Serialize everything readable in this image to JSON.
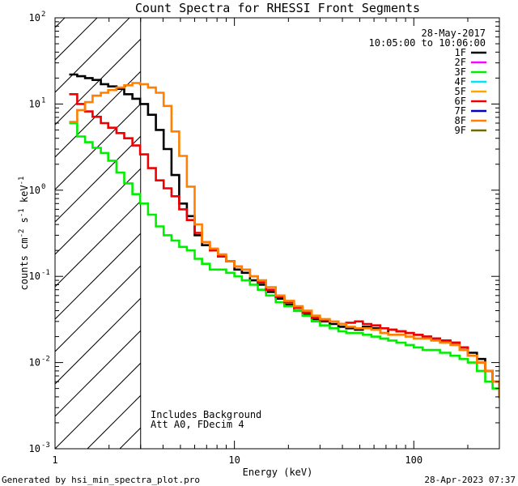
{
  "chart_data": {
    "type": "line",
    "title": "Count Spectra for RHESSI Front Segments",
    "xlabel": "Energy (keV)",
    "ylabel_base": "counts cm",
    "ylabel_exp1": "-2",
    "ylabel_mid": " s",
    "ylabel_exp2": "-1",
    "ylabel_tail": " keV",
    "ylabel_exp3": "-1",
    "xscale": "log",
    "yscale": "log",
    "xlim": [
      1,
      300
    ],
    "ylim": [
      0.001,
      100
    ],
    "x_ticks": [
      {
        "value": 1,
        "base": "1",
        "exp": ""
      },
      {
        "value": 10,
        "base": "10",
        "exp": ""
      },
      {
        "value": 100,
        "base": "100",
        "exp": ""
      }
    ],
    "y_ticks": [
      {
        "value": 100,
        "base": "10",
        "exp": "2"
      },
      {
        "value": 10,
        "base": "10",
        "exp": "1"
      },
      {
        "value": 1,
        "base": "10",
        "exp": "0"
      },
      {
        "value": 0.1,
        "base": "10",
        "exp": "-1"
      },
      {
        "value": 0.01,
        "base": "10",
        "exp": "-2"
      },
      {
        "value": 0.001,
        "base": "10",
        "exp": "-3"
      }
    ],
    "legend_position": "top-right",
    "date": "28-May-2017",
    "time_range": "10:05:00 to 10:06:00",
    "legend": [
      {
        "name": "1F",
        "color": "#000000"
      },
      {
        "name": "2F",
        "color": "#ff00ff"
      },
      {
        "name": "3F",
        "color": "#00ee00"
      },
      {
        "name": "4F",
        "color": "#00e5ee"
      },
      {
        "name": "5F",
        "color": "#ffa500"
      },
      {
        "name": "6F",
        "color": "#ee0000"
      },
      {
        "name": "7F",
        "color": "#0000cd"
      },
      {
        "name": "8F",
        "color": "#ff8000"
      },
      {
        "name": "9F",
        "color": "#6b6b00"
      }
    ],
    "threshold_energy": 3,
    "annotations": [
      "Includes Background",
      "Att A0, FDecim 4"
    ],
    "series": [
      {
        "name": "1F",
        "color": "#000000",
        "x": [
          1.2,
          1.33,
          1.47,
          1.62,
          1.8,
          1.98,
          2.2,
          2.43,
          2.7,
          2.98,
          3.3,
          3.65,
          4.03,
          4.46,
          4.92,
          5.43,
          6.0,
          6.6,
          7.3,
          8.1,
          9.0,
          10.0,
          11.0,
          12.2,
          13.5,
          15.0,
          17.0,
          19.0,
          21.5,
          24.0,
          27.0,
          30.0,
          34.0,
          38.0,
          42.0,
          47.0,
          52.0,
          58.0,
          65.0,
          72.0,
          80.0,
          90.0,
          100.0,
          112.0,
          125.0,
          140.0,
          160.0,
          180.0,
          200.0,
          225.0,
          250.0,
          275.0,
          300.0
        ],
        "y": [
          22,
          21,
          20,
          19,
          17,
          16,
          15,
          13,
          11.5,
          10,
          7.5,
          5.0,
          3.0,
          1.5,
          0.7,
          0.5,
          0.3,
          0.23,
          0.2,
          0.17,
          0.15,
          0.12,
          0.11,
          0.09,
          0.08,
          0.066,
          0.055,
          0.047,
          0.04,
          0.036,
          0.032,
          0.03,
          0.028,
          0.026,
          0.025,
          0.024,
          0.026,
          0.025,
          0.022,
          0.024,
          0.023,
          0.022,
          0.021,
          0.02,
          0.019,
          0.018,
          0.017,
          0.015,
          0.013,
          0.011,
          0.008,
          0.006,
          0.004
        ]
      },
      {
        "name": "3F",
        "color": "#00ee00",
        "x": [
          1.2,
          1.33,
          1.47,
          1.62,
          1.8,
          1.98,
          2.2,
          2.43,
          2.7,
          2.98,
          3.3,
          3.65,
          4.03,
          4.46,
          4.92,
          5.43,
          6.0,
          6.6,
          7.3,
          8.1,
          9.0,
          10.0,
          11.0,
          12.2,
          13.5,
          15.0,
          17.0,
          19.0,
          21.5,
          24.0,
          27.0,
          30.0,
          34.0,
          38.0,
          42.0,
          47.0,
          52.0,
          58.0,
          65.0,
          72.0,
          80.0,
          90.0,
          100.0,
          112.0,
          125.0,
          140.0,
          160.0,
          180.0,
          200.0,
          225.0,
          250.0,
          275.0,
          300.0
        ],
        "y": [
          6,
          4.2,
          3.6,
          3.1,
          2.7,
          2.2,
          1.6,
          1.2,
          0.9,
          0.7,
          0.52,
          0.38,
          0.3,
          0.26,
          0.22,
          0.2,
          0.16,
          0.14,
          0.12,
          0.12,
          0.11,
          0.1,
          0.09,
          0.08,
          0.07,
          0.06,
          0.05,
          0.045,
          0.04,
          0.035,
          0.03,
          0.027,
          0.025,
          0.023,
          0.022,
          0.022,
          0.021,
          0.02,
          0.019,
          0.018,
          0.017,
          0.016,
          0.015,
          0.014,
          0.014,
          0.013,
          0.012,
          0.011,
          0.01,
          0.008,
          0.006,
          0.005,
          0.004
        ]
      },
      {
        "name": "6F",
        "color": "#ee0000",
        "x": [
          1.2,
          1.33,
          1.47,
          1.62,
          1.8,
          1.98,
          2.2,
          2.43,
          2.7,
          2.98,
          3.3,
          3.65,
          4.03,
          4.46,
          4.92,
          5.43,
          6.0,
          6.6,
          7.3,
          8.1,
          9.0,
          10.0,
          11.0,
          12.2,
          13.5,
          15.0,
          17.0,
          19.0,
          21.5,
          24.0,
          27.0,
          30.0,
          34.0,
          38.0,
          42.0,
          47.0,
          52.0,
          58.0,
          65.0,
          72.0,
          80.0,
          90.0,
          100.0,
          112.0,
          125.0,
          140.0,
          160.0,
          180.0,
          200.0,
          225.0,
          250.0,
          275.0,
          300.0
        ],
        "y": [
          13,
          10,
          8.2,
          7.1,
          6.0,
          5.3,
          4.6,
          4.0,
          3.3,
          2.6,
          1.8,
          1.3,
          1.05,
          0.85,
          0.6,
          0.45,
          0.32,
          0.25,
          0.2,
          0.17,
          0.15,
          0.13,
          0.12,
          0.1,
          0.085,
          0.07,
          0.058,
          0.05,
          0.043,
          0.038,
          0.033,
          0.031,
          0.03,
          0.028,
          0.029,
          0.03,
          0.028,
          0.027,
          0.025,
          0.024,
          0.023,
          0.022,
          0.021,
          0.02,
          0.019,
          0.018,
          0.017,
          0.015,
          0.012,
          0.01,
          0.008,
          0.006,
          0.004
        ]
      },
      {
        "name": "8F",
        "color": "#ff8000",
        "x": [
          1.2,
          1.33,
          1.47,
          1.62,
          1.8,
          1.98,
          2.2,
          2.43,
          2.7,
          2.98,
          3.3,
          3.65,
          4.03,
          4.46,
          4.92,
          5.43,
          6.0,
          6.6,
          7.3,
          8.1,
          9.0,
          10.0,
          11.0,
          12.2,
          13.5,
          15.0,
          17.0,
          19.0,
          21.5,
          24.0,
          27.0,
          30.0,
          34.0,
          38.0,
          42.0,
          47.0,
          52.0,
          58.0,
          65.0,
          72.0,
          80.0,
          90.0,
          100.0,
          112.0,
          125.0,
          140.0,
          160.0,
          180.0,
          200.0,
          225.0,
          250.0,
          275.0,
          300.0
        ],
        "y": [
          6.2,
          8.5,
          10.5,
          12.5,
          13.5,
          14.5,
          15.5,
          16.5,
          17.5,
          17,
          15.5,
          13.5,
          9.5,
          4.8,
          2.5,
          1.1,
          0.4,
          0.25,
          0.21,
          0.18,
          0.15,
          0.13,
          0.12,
          0.1,
          0.09,
          0.075,
          0.06,
          0.052,
          0.045,
          0.04,
          0.035,
          0.032,
          0.03,
          0.028,
          0.026,
          0.025,
          0.025,
          0.024,
          0.022,
          0.021,
          0.021,
          0.02,
          0.019,
          0.019,
          0.018,
          0.017,
          0.016,
          0.014,
          0.012,
          0.01,
          0.008,
          0.006,
          0.004
        ]
      }
    ]
  },
  "footer": {
    "generated_by": "Generated by hsi_min_spectra_plot.pro",
    "timestamp": "28-Apr-2023 07:37"
  }
}
